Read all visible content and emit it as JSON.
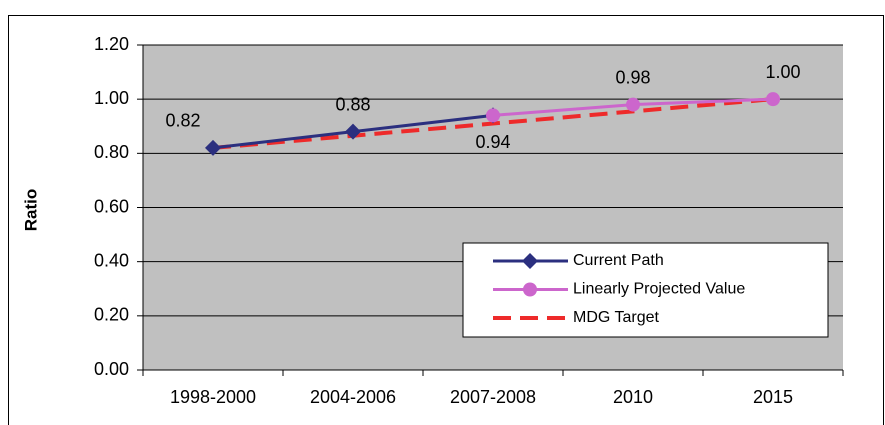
{
  "chart_data": {
    "type": "line",
    "y_label": "Ratio",
    "categories": [
      "1998-2000",
      "2004-2006",
      "2007-2008",
      "2010",
      "2015"
    ],
    "series": [
      {
        "name": "Current Path",
        "color": "#2b2f7f",
        "marker": "diamond",
        "values": [
          0.82,
          0.88,
          0.94,
          null,
          null
        ],
        "value_labels": [
          "0.82",
          "0.88",
          "0.94",
          null,
          null
        ]
      },
      {
        "name": "Linearly Projected Value",
        "color": "#cc66cc",
        "marker": "circle",
        "values": [
          null,
          null,
          0.94,
          0.98,
          1.0
        ],
        "value_labels": [
          null,
          null,
          null,
          "0.98",
          "1.00"
        ]
      },
      {
        "name": "MDG Target",
        "color": "#ee2a2a",
        "dashed": true,
        "values": [
          0.82,
          0.865,
          0.91,
          0.955,
          1.0
        ]
      }
    ],
    "ylim": [
      0,
      1.2
    ],
    "yticks": [
      {
        "value": 0,
        "label": "0.00"
      },
      {
        "value": 0.2,
        "label": "0.20"
      },
      {
        "value": 0.4,
        "label": "0.40"
      },
      {
        "value": 0.6,
        "label": "0.60"
      },
      {
        "value": 0.8,
        "label": "0.80"
      },
      {
        "value": 1.0,
        "label": "1.00"
      },
      {
        "value": 1.2,
        "label": "1.20"
      }
    ],
    "grid": true,
    "legend": "lower right",
    "plot_background": "#c0c0c0"
  }
}
